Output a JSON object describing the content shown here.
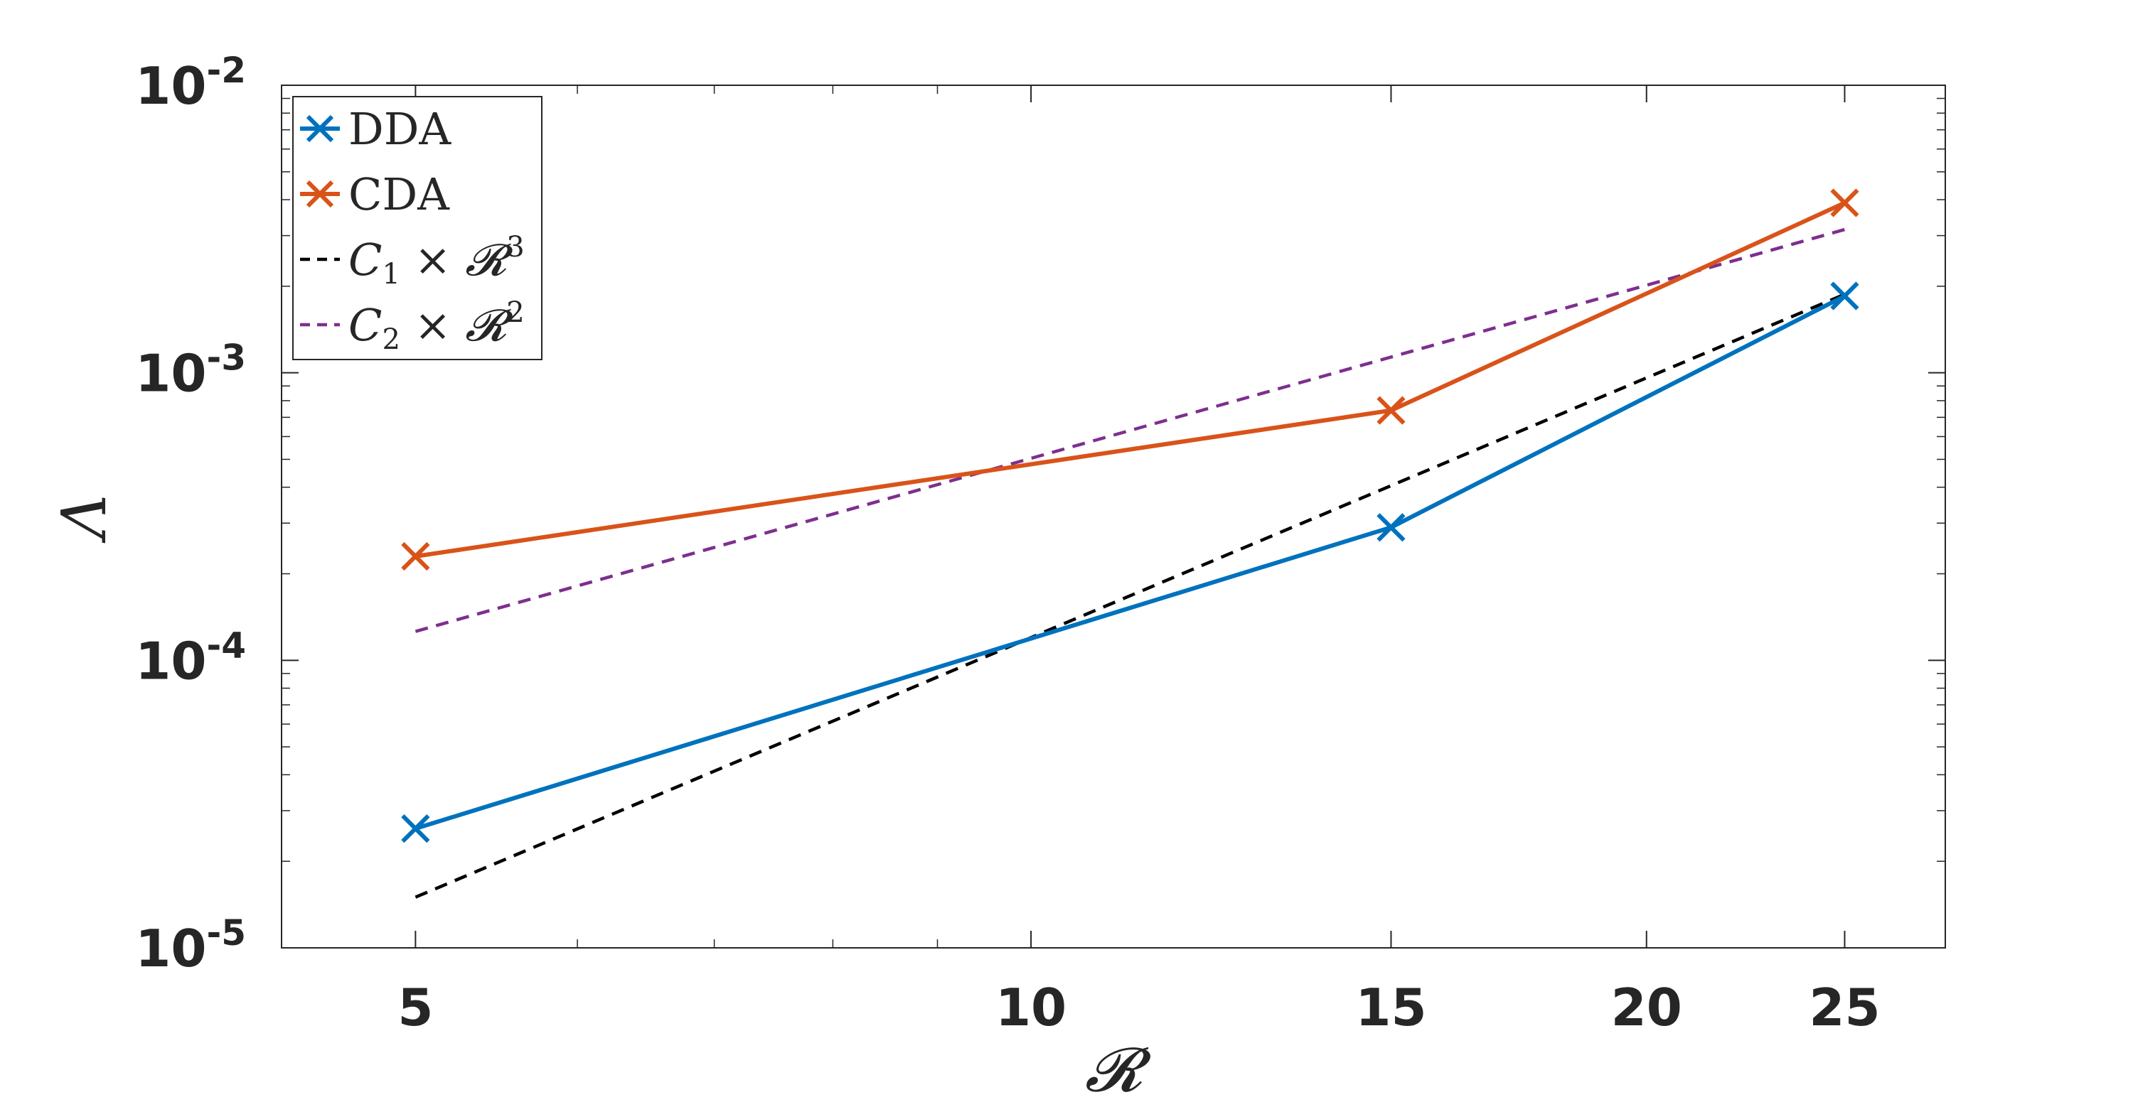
{
  "chart_data": {
    "type": "line",
    "xscale": "log",
    "yscale": "log",
    "xlim": [
      4.3,
      28
    ],
    "ylim": [
      1e-05,
      0.01
    ],
    "xlabel": "𝓡",
    "ylabel": "Λ",
    "xticks": [
      {
        "value": 5,
        "label": "5"
      },
      {
        "value": 10,
        "label": "10"
      },
      {
        "value": 15,
        "label": "15"
      },
      {
        "value": 20,
        "label": "20"
      },
      {
        "value": 25,
        "label": "25"
      }
    ],
    "yticks": [
      {
        "value": 1e-05,
        "base": "10",
        "exp": "-5"
      },
      {
        "value": 0.0001,
        "base": "10",
        "exp": "-4"
      },
      {
        "value": 0.001,
        "base": "10",
        "exp": "-3"
      },
      {
        "value": 0.01,
        "base": "10",
        "exp": "-2"
      }
    ],
    "legend_position": "top-left",
    "grid": false,
    "series": [
      {
        "name": "DDA",
        "color": "#0072bd",
        "style": "solid",
        "marker": "x",
        "points": [
          [
            5,
            2.6e-05
          ],
          [
            15,
            0.00029
          ],
          [
            25,
            0.00185
          ]
        ]
      },
      {
        "name": "CDA",
        "color": "#d95319",
        "style": "solid",
        "marker": "x",
        "points": [
          [
            5,
            0.00023
          ],
          [
            15,
            0.00074
          ],
          [
            25,
            0.0039
          ]
        ]
      },
      {
        "name": "C1 × R^3",
        "legend_main": "C",
        "legend_sub": "1",
        "legend_mid": " × 𝓡",
        "legend_sup": "3",
        "color": "#000000",
        "style": "dashed",
        "marker": "none",
        "points": [
          [
            5,
            1.5e-05
          ],
          [
            25,
            0.001875
          ]
        ]
      },
      {
        "name": "C2 × R^2",
        "legend_main": "C",
        "legend_sub": "2",
        "legend_mid": " × 𝓡",
        "legend_sup": "2",
        "color": "#7e2f8e",
        "style": "dashed",
        "marker": "none",
        "points": [
          [
            5,
            0.000126
          ],
          [
            25,
            0.00315
          ]
        ]
      }
    ]
  }
}
